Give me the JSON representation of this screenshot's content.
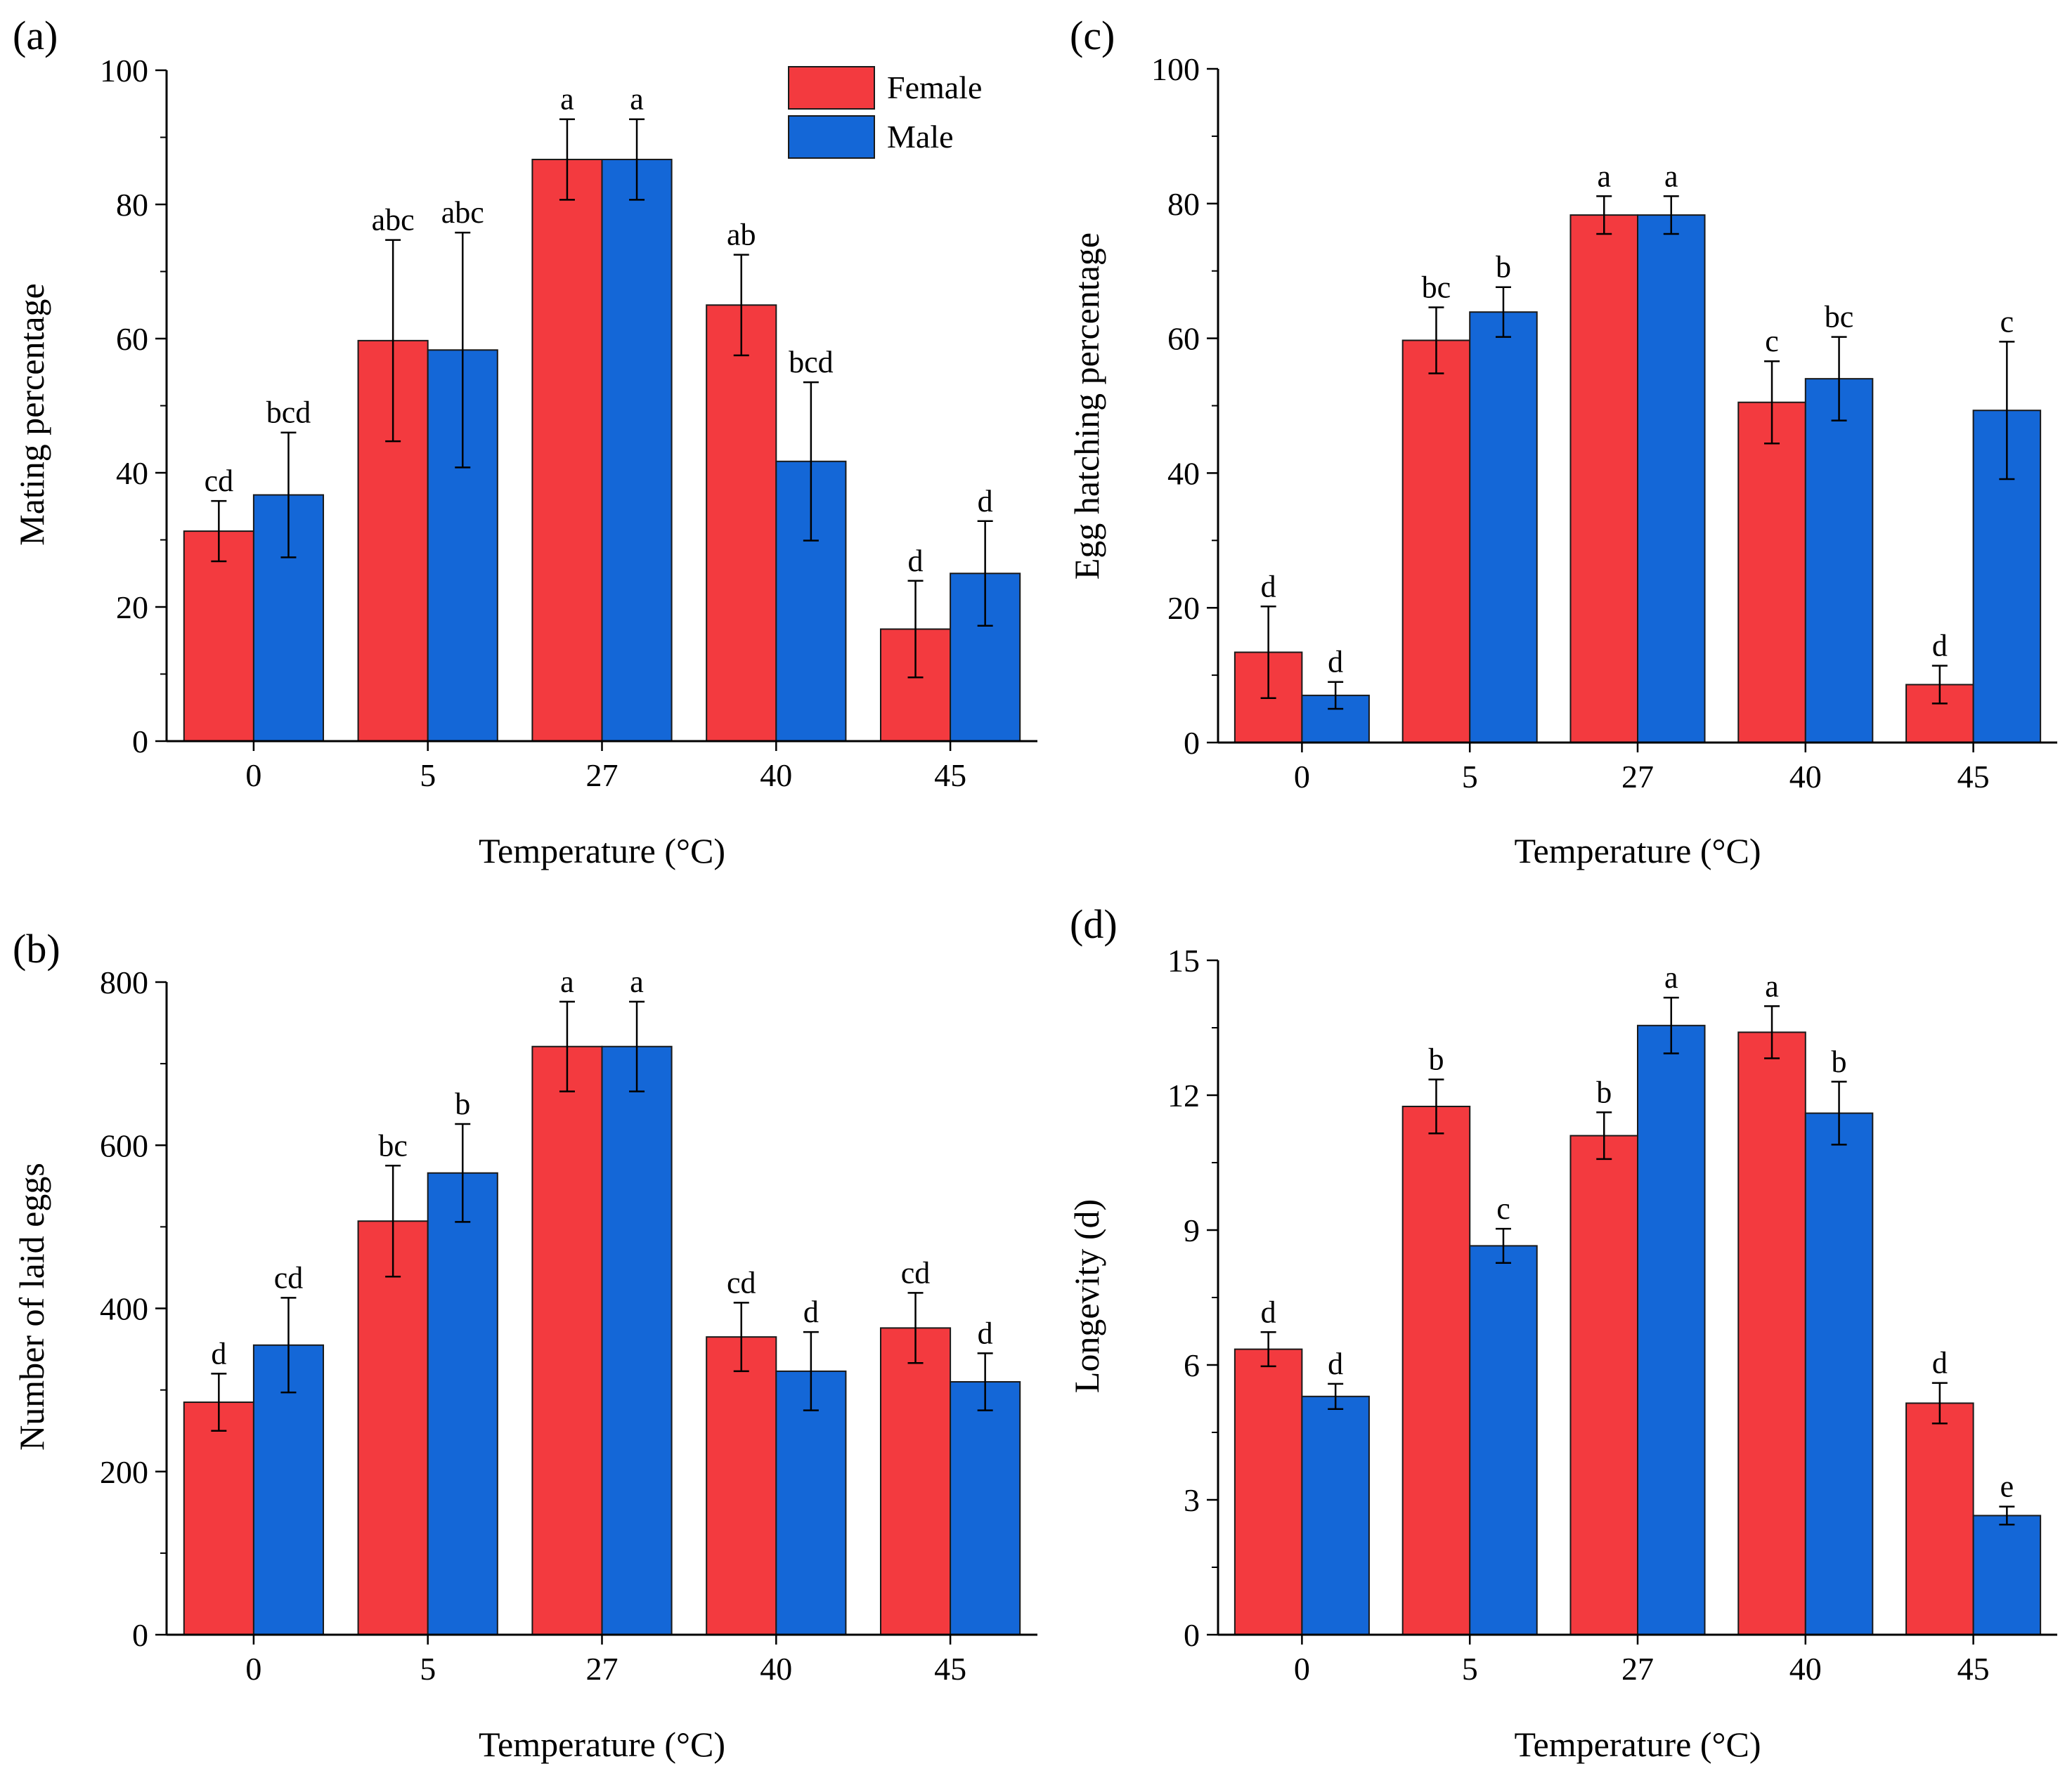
{
  "chart_data": [
    {
      "id": "a",
      "panel_label": "(a)",
      "type": "bar",
      "title": "",
      "xlabel": "Temperature (°C)",
      "ylabel": "Mating percentage",
      "categories": [
        "0",
        "5",
        "27",
        "40",
        "45"
      ],
      "ylim": [
        0,
        100
      ],
      "yticks": [
        "0",
        "20",
        "40",
        "60",
        "80",
        "100"
      ],
      "legend": "top-right",
      "series": [
        {
          "name": "Female",
          "color": "#f33a3f",
          "values": [
            31.3,
            59.7,
            86.7,
            65.0,
            16.7
          ],
          "errors": [
            4.5,
            15.0,
            6.0,
            7.5,
            7.2
          ],
          "letters": [
            "cd",
            "abc",
            "a",
            "ab",
            "d"
          ]
        },
        {
          "name": "Male",
          "color": "#1467d7",
          "values": [
            36.7,
            58.3,
            86.7,
            41.7,
            25.0
          ],
          "errors": [
            9.3,
            17.5,
            6.0,
            11.8,
            7.8
          ],
          "letters": [
            "bcd",
            "abc",
            "a",
            "bcd",
            "d"
          ]
        }
      ]
    },
    {
      "id": "b",
      "panel_label": "(b)",
      "type": "bar",
      "title": "",
      "xlabel": "Temperature (°C)",
      "ylabel": "Number of  laid eggs",
      "categories": [
        "0",
        "5",
        "27",
        "40",
        "45"
      ],
      "ylim": [
        0,
        800
      ],
      "yticks": [
        "0",
        "200",
        "400",
        "600",
        "800"
      ],
      "series": [
        {
          "name": "Female",
          "color": "#f33a3f",
          "values": [
            285,
            507,
            721,
            365,
            376
          ],
          "errors": [
            35,
            68,
            55,
            42,
            43
          ],
          "letters": [
            "d",
            "bc",
            "a",
            "cd",
            "cd"
          ]
        },
        {
          "name": "Male",
          "color": "#1467d7",
          "values": [
            355,
            566,
            721,
            323,
            310
          ],
          "errors": [
            58,
            60,
            55,
            48,
            35
          ],
          "letters": [
            "cd",
            "b",
            "a",
            "d",
            "d"
          ]
        }
      ]
    },
    {
      "id": "c",
      "panel_label": "(c)",
      "type": "bar",
      "title": "",
      "xlabel": "Temperature (°C)",
      "ylabel": "Egg hatching percentage",
      "categories": [
        "0",
        "5",
        "27",
        "40",
        "45"
      ],
      "ylim": [
        0,
        100
      ],
      "yticks": [
        "0",
        "20",
        "40",
        "60",
        "80",
        "100"
      ],
      "series": [
        {
          "name": "Female",
          "color": "#f33a3f",
          "values": [
            13.4,
            59.7,
            78.3,
            50.5,
            8.6
          ],
          "errors": [
            6.8,
            4.9,
            2.8,
            6.1,
            2.8
          ],
          "letters": [
            "d",
            "bc",
            "a",
            "c",
            "d"
          ]
        },
        {
          "name": "Male",
          "color": "#1467d7",
          "values": [
            7.0,
            63.9,
            78.3,
            54.0,
            49.3
          ],
          "errors": [
            2.0,
            3.7,
            2.8,
            6.2,
            10.2
          ],
          "letters": [
            "d",
            "b",
            "a",
            "bc",
            "c"
          ]
        }
      ]
    },
    {
      "id": "d",
      "panel_label": "(d)",
      "type": "bar",
      "title": "",
      "xlabel": "Temperature (°C)",
      "ylabel": "Longevity (d)",
      "categories": [
        "0",
        "5",
        "27",
        "40",
        "45"
      ],
      "ylim": [
        0,
        15
      ],
      "yticks": [
        "0",
        "3",
        "6",
        "9",
        "12",
        "15"
      ],
      "series": [
        {
          "name": "Female",
          "color": "#f33a3f",
          "values": [
            6.35,
            11.75,
            11.1,
            13.4,
            5.15
          ],
          "errors": [
            0.38,
            0.6,
            0.52,
            0.58,
            0.45
          ],
          "letters": [
            "d",
            "b",
            "b",
            "a",
            "d"
          ]
        },
        {
          "name": "Male",
          "color": "#1467d7",
          "values": [
            5.3,
            8.65,
            13.55,
            11.6,
            2.65
          ],
          "errors": [
            0.28,
            0.38,
            0.62,
            0.7,
            0.2
          ],
          "letters": [
            "d",
            "c",
            "a",
            "b",
            "e"
          ]
        }
      ]
    }
  ]
}
